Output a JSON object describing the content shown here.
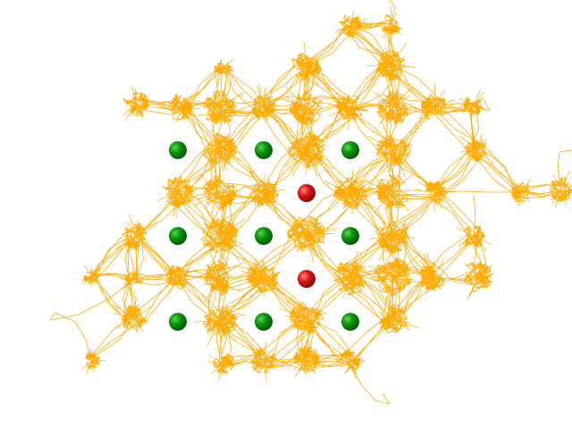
{
  "scene": {
    "background": "#ffffff",
    "trajectory_color": "#ffaa00",
    "green_atom_color": "#0a8a0a",
    "red_atom_color": "#dd1111",
    "description_icons": [
      "trajectory-cloud",
      "green-sphere",
      "red-sphere"
    ],
    "counts": {
      "green_atoms": 9,
      "red_atoms": 2
    }
  }
}
